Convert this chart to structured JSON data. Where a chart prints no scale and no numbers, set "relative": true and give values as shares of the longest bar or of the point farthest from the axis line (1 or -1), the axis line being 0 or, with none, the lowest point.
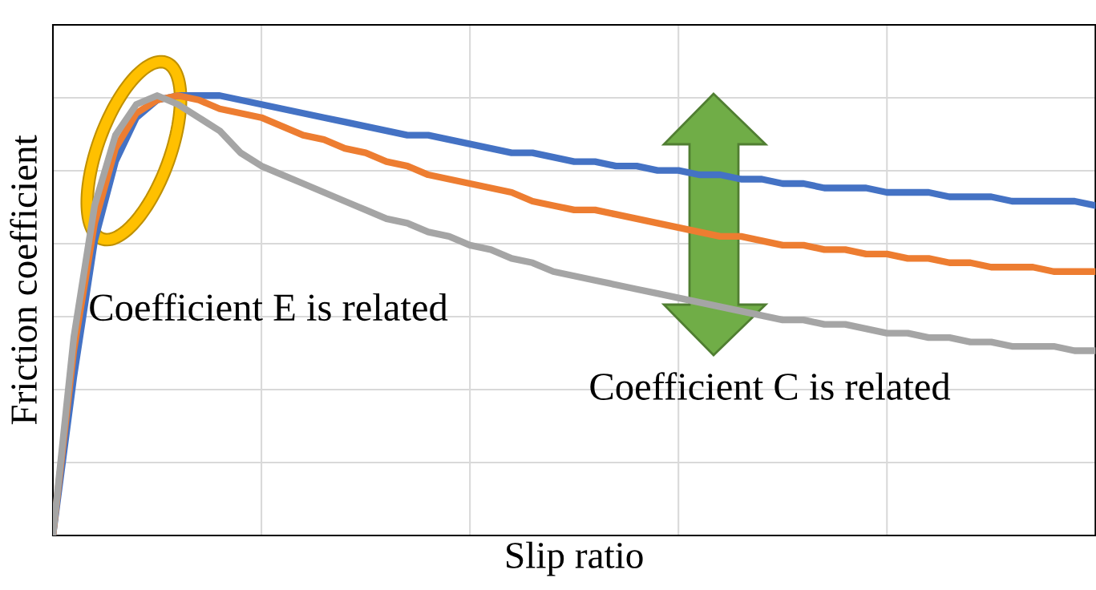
{
  "chart_data": {
    "type": "line",
    "xlabel": "Slip ratio",
    "ylabel": "Friction coefficient",
    "relative": true,
    "grid": true,
    "categories": [
      null,
      null,
      null,
      null,
      null,
      null,
      null,
      null,
      null,
      null,
      null,
      null,
      null,
      null,
      null,
      null,
      null,
      null,
      null,
      null,
      null,
      null,
      null,
      null,
      null,
      null,
      null,
      null,
      null,
      null,
      null,
      null,
      null,
      null,
      null,
      null,
      null,
      null,
      null,
      null,
      null,
      null,
      null,
      null,
      null,
      null,
      null,
      null,
      null,
      null,
      null
    ],
    "series": [
      {
        "color": "#4472c4",
        "values": [
          0,
          0.36,
          0.67,
          0.85,
          0.95,
          0.99,
          1.0,
          1.0,
          1.0,
          0.99,
          0.98,
          0.97,
          0.96,
          0.95,
          0.94,
          0.93,
          0.92,
          0.91,
          0.91,
          0.9,
          0.89,
          0.88,
          0.87,
          0.87,
          0.86,
          0.85,
          0.85,
          0.84,
          0.84,
          0.83,
          0.83,
          0.82,
          0.82,
          0.81,
          0.81,
          0.8,
          0.8,
          0.79,
          0.79,
          0.79,
          0.78,
          0.78,
          0.78,
          0.77,
          0.77,
          0.77,
          0.76,
          0.76,
          0.76,
          0.76,
          0.75
        ]
      },
      {
        "color": "#ed7d31",
        "values": [
          0,
          0.42,
          0.71,
          0.88,
          0.96,
          0.99,
          1.0,
          0.99,
          0.97,
          0.96,
          0.95,
          0.93,
          0.91,
          0.9,
          0.88,
          0.87,
          0.85,
          0.84,
          0.82,
          0.81,
          0.8,
          0.79,
          0.78,
          0.76,
          0.75,
          0.74,
          0.74,
          0.73,
          0.72,
          0.71,
          0.7,
          0.69,
          0.68,
          0.68,
          0.67,
          0.66,
          0.66,
          0.65,
          0.65,
          0.64,
          0.64,
          0.63,
          0.63,
          0.62,
          0.62,
          0.61,
          0.61,
          0.61,
          0.6,
          0.6,
          0.6
        ]
      },
      {
        "color": "#a5a5a5",
        "values": [
          0,
          0.45,
          0.75,
          0.91,
          0.98,
          1.0,
          0.98,
          0.95,
          0.92,
          0.87,
          0.84,
          0.82,
          0.8,
          0.78,
          0.76,
          0.74,
          0.72,
          0.71,
          0.69,
          0.68,
          0.66,
          0.65,
          0.63,
          0.62,
          0.6,
          0.59,
          0.58,
          0.57,
          0.56,
          0.55,
          0.54,
          0.53,
          0.52,
          0.51,
          0.5,
          0.49,
          0.49,
          0.48,
          0.48,
          0.47,
          0.46,
          0.46,
          0.45,
          0.45,
          0.44,
          0.44,
          0.43,
          0.43,
          0.43,
          0.42,
          0.42
        ]
      }
    ],
    "annotations": [
      "Coefficient E is related",
      "Coefficient C is related"
    ]
  }
}
